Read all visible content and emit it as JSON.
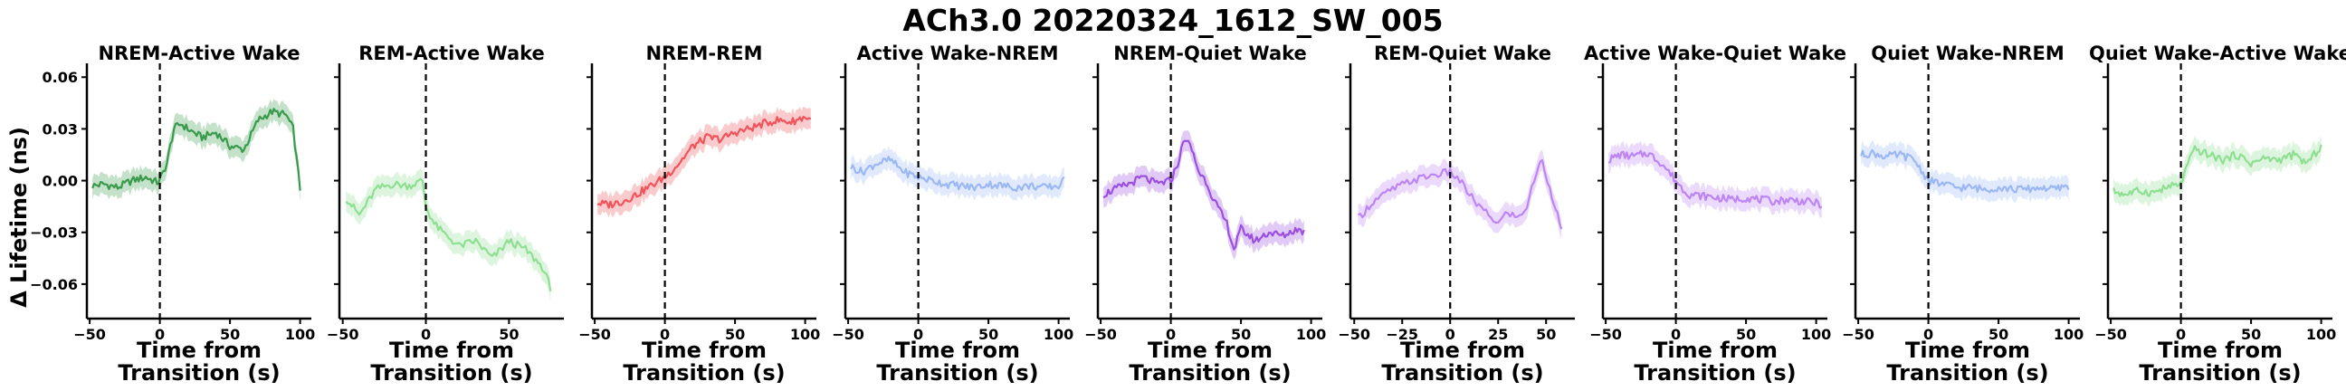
{
  "figure": {
    "title": "ACh3.0 20220324_1612_SW_005",
    "ylabel": "Δ Lifetime (ns)",
    "xlabel_line1": "Time from",
    "xlabel_line2": "Transition (s)"
  },
  "chart_data": [
    {
      "type": "line",
      "title": "NREM-Active Wake",
      "color": "#3a9a4c",
      "xlim": [
        -52,
        108
      ],
      "ylim": [
        -0.08,
        0.068
      ],
      "xticks": [
        -50,
        0,
        50,
        100
      ],
      "yticks": [
        0.06,
        0.03,
        0.0,
        -0.03,
        -0.06
      ],
      "yticklabels": [
        "0.06",
        "0.03",
        "0.00",
        "-0.03",
        "-0.06"
      ],
      "x": [
        -48,
        -40,
        -30,
        -20,
        -10,
        -2,
        0,
        5,
        10,
        15,
        20,
        30,
        40,
        50,
        60,
        70,
        80,
        90,
        95,
        100
      ],
      "y": [
        -0.003,
        -0.002,
        -0.004,
        0.0,
        0.002,
        -0.001,
        0.0,
        0.01,
        0.03,
        0.033,
        0.03,
        0.025,
        0.028,
        0.02,
        0.018,
        0.035,
        0.04,
        0.038,
        0.03,
        -0.005
      ],
      "vline_x": 0
    },
    {
      "type": "line",
      "title": "REM-Active Wake",
      "color": "#8fdf93",
      "xlim": [
        -52,
        83
      ],
      "ylim": [
        -0.08,
        0.068
      ],
      "xticks": [
        -50,
        0,
        50
      ],
      "x": [
        -48,
        -40,
        -30,
        -20,
        -10,
        -2,
        0,
        5,
        10,
        20,
        30,
        40,
        50,
        60,
        70,
        75
      ],
      "y": [
        -0.01,
        -0.02,
        -0.005,
        -0.002,
        -0.003,
        0.0,
        -0.015,
        -0.025,
        -0.03,
        -0.038,
        -0.035,
        -0.045,
        -0.035,
        -0.04,
        -0.05,
        -0.062
      ],
      "vline_x": 0
    },
    {
      "type": "line",
      "title": "NREM-REM",
      "color": "#f0545a",
      "xlim": [
        -52,
        108
      ],
      "ylim": [
        -0.08,
        0.068
      ],
      "xticks": [
        -50,
        0,
        50,
        100
      ],
      "x": [
        -48,
        -40,
        -30,
        -20,
        -10,
        0,
        10,
        20,
        30,
        40,
        50,
        60,
        70,
        80,
        90,
        100,
        104
      ],
      "y": [
        -0.013,
        -0.014,
        -0.012,
        -0.008,
        -0.003,
        0.002,
        0.01,
        0.02,
        0.025,
        0.024,
        0.028,
        0.03,
        0.033,
        0.035,
        0.034,
        0.037,
        0.035
      ],
      "vline_x": 0
    },
    {
      "type": "line",
      "title": "Active Wake-NREM",
      "color": "#9bb8f4",
      "xlim": [
        -52,
        108
      ],
      "ylim": [
        -0.08,
        0.068
      ],
      "xticks": [
        -50,
        0,
        50,
        100
      ],
      "x": [
        -48,
        -40,
        -30,
        -20,
        -10,
        0,
        10,
        20,
        30,
        40,
        50,
        60,
        70,
        80,
        90,
        100,
        104
      ],
      "y": [
        0.008,
        0.005,
        0.01,
        0.012,
        0.005,
        0.002,
        0.0,
        -0.002,
        -0.003,
        -0.004,
        -0.002,
        -0.003,
        -0.004,
        -0.003,
        -0.004,
        -0.003,
        0.0
      ],
      "vline_x": 0
    },
    {
      "type": "line",
      "title": "NREM-Quiet Wake",
      "color": "#9b4fe0",
      "xlim": [
        -52,
        108
      ],
      "ylim": [
        -0.08,
        0.068
      ],
      "xticks": [
        -50,
        0,
        50,
        100
      ],
      "x": [
        -48,
        -40,
        -30,
        -20,
        -10,
        0,
        5,
        10,
        15,
        20,
        25,
        30,
        35,
        40,
        45,
        50,
        60,
        70,
        80,
        90,
        95
      ],
      "y": [
        -0.008,
        -0.005,
        -0.002,
        0.002,
        -0.002,
        0.0,
        0.01,
        0.025,
        0.018,
        0.005,
        0.0,
        -0.01,
        -0.018,
        -0.025,
        -0.04,
        -0.028,
        -0.035,
        -0.03,
        -0.032,
        -0.028,
        -0.03
      ],
      "vline_x": 0
    },
    {
      "type": "line",
      "title": "REM-Quiet Wake",
      "color": "#bc85f3",
      "xlim": [
        -52,
        65
      ],
      "ylim": [
        -0.08,
        0.068
      ],
      "xticks": [
        -50,
        -25,
        0,
        25,
        50
      ],
      "x": [
        -48,
        -40,
        -30,
        -20,
        -10,
        0,
        5,
        10,
        15,
        20,
        25,
        30,
        35,
        40,
        45,
        48,
        52,
        55,
        58
      ],
      "y": [
        -0.022,
        -0.012,
        -0.005,
        0.0,
        0.003,
        0.005,
        0.0,
        -0.008,
        -0.015,
        -0.02,
        -0.025,
        -0.018,
        -0.022,
        -0.015,
        0.005,
        0.012,
        -0.005,
        -0.015,
        -0.03
      ],
      "vline_x": 0
    },
    {
      "type": "line",
      "title": "Active Wake-Quiet Wake",
      "color": "#bc85f3",
      "xlim": [
        -52,
        108
      ],
      "ylim": [
        -0.08,
        0.068
      ],
      "xticks": [
        -50,
        0,
        50,
        100
      ],
      "x": [
        -48,
        -40,
        -30,
        -20,
        -10,
        0,
        5,
        10,
        20,
        30,
        40,
        50,
        60,
        70,
        80,
        90,
        100,
        104
      ],
      "y": [
        0.012,
        0.015,
        0.014,
        0.016,
        0.01,
        0.0,
        -0.005,
        -0.008,
        -0.009,
        -0.01,
        -0.011,
        -0.01,
        -0.011,
        -0.012,
        -0.011,
        -0.012,
        -0.013,
        -0.014
      ],
      "vline_x": 0
    },
    {
      "type": "line",
      "title": "Quiet Wake-NREM",
      "color": "#9bb8f4",
      "xlim": [
        -52,
        108
      ],
      "ylim": [
        -0.08,
        0.068
      ],
      "xticks": [
        -50,
        0,
        50,
        100
      ],
      "x": [
        -48,
        -40,
        -30,
        -20,
        -10,
        0,
        10,
        20,
        30,
        40,
        50,
        60,
        70,
        80,
        90,
        100
      ],
      "y": [
        0.015,
        0.016,
        0.014,
        0.015,
        0.012,
        0.0,
        -0.002,
        -0.004,
        -0.004,
        -0.005,
        -0.004,
        -0.005,
        -0.005,
        -0.004,
        -0.005,
        -0.003
      ],
      "vline_x": 0
    },
    {
      "type": "line",
      "title": "Quiet Wake-Active Wake",
      "color": "#8fdf93",
      "xlim": [
        -52,
        108
      ],
      "ylim": [
        -0.08,
        0.068
      ],
      "xticks": [
        -50,
        0,
        50,
        100
      ],
      "x": [
        -48,
        -40,
        -30,
        -20,
        -10,
        0,
        5,
        10,
        20,
        30,
        40,
        50,
        60,
        70,
        80,
        90,
        100
      ],
      "y": [
        -0.006,
        -0.008,
        -0.006,
        -0.007,
        -0.004,
        -0.002,
        0.01,
        0.018,
        0.015,
        0.012,
        0.015,
        0.01,
        0.013,
        0.012,
        0.015,
        0.01,
        0.02
      ],
      "vline_x": 0
    }
  ]
}
